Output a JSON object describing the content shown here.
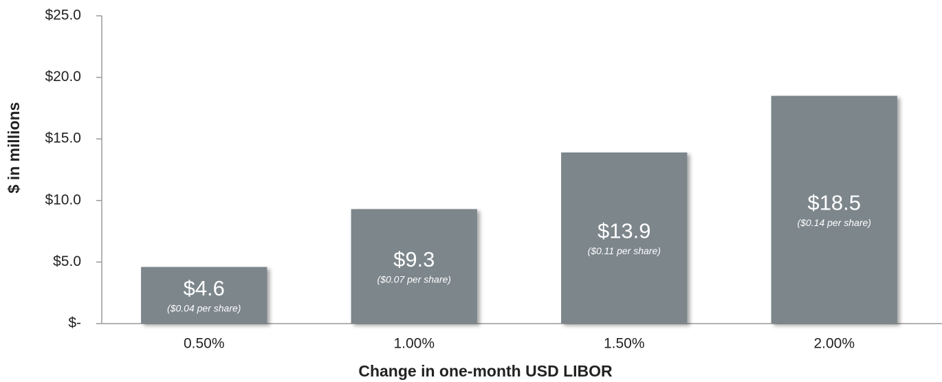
{
  "chart_data": {
    "type": "bar",
    "x_label": "Change in one-month USD LIBOR",
    "y_label": "$ in millions",
    "categories": [
      "0.50%",
      "1.00%",
      "1.50%",
      "2.00%"
    ],
    "values": [
      4.6,
      9.3,
      13.9,
      18.5
    ],
    "value_labels": [
      "$4.6",
      "$9.3",
      "$13.9",
      "$18.5"
    ],
    "annotations": [
      "($0.04 per share)",
      "($0.07 per share)",
      "($0.11 per share)",
      "($0.14 per share)"
    ],
    "color": "#7c868b",
    "ylim": [
      0,
      25
    ],
    "yticks": [
      {
        "value": 0,
        "label": "$-"
      },
      {
        "value": 5,
        "label": "$5.0"
      },
      {
        "value": 10,
        "label": "$10.0"
      },
      {
        "value": 15,
        "label": "$15.0"
      },
      {
        "value": 20,
        "label": "$20.0"
      },
      {
        "value": 25,
        "label": "$25.0"
      }
    ],
    "grid": false
  }
}
